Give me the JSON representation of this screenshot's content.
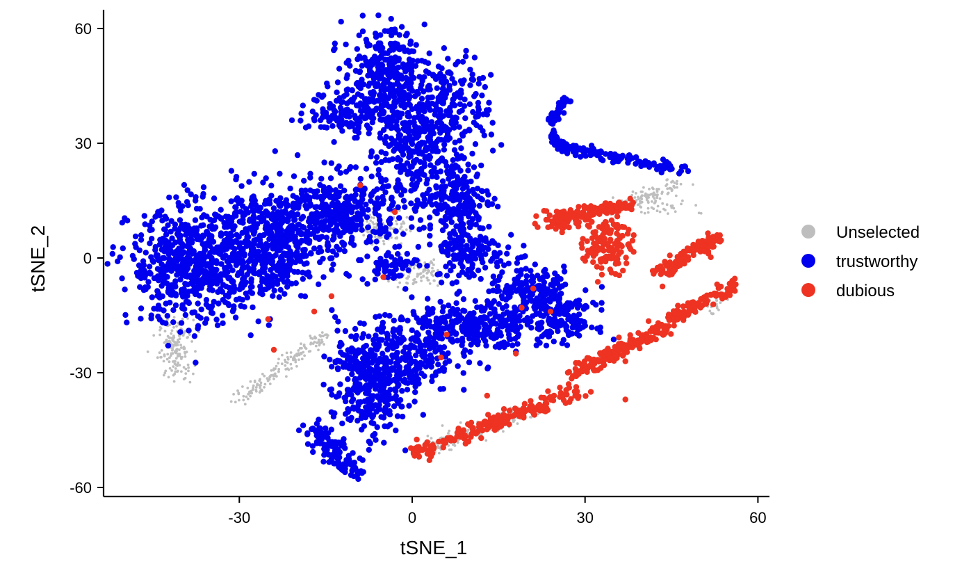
{
  "chart_data": {
    "type": "scatter",
    "title": "",
    "xlabel": "tSNE_1",
    "ylabel": "tSNE_2",
    "xlim": [
      -53,
      62
    ],
    "ylim": [
      -62,
      65
    ],
    "xticks": [
      -30,
      0,
      30,
      60
    ],
    "yticks": [
      -60,
      -30,
      0,
      30,
      60
    ],
    "grid": false,
    "legend_position": "right",
    "series": [
      {
        "name": "Unselected",
        "color": "#bebebe",
        "point_size": "small",
        "clusters": [
          {
            "cx": -41,
            "cy": -24,
            "sx": 1.5,
            "sy": 4,
            "n": 160
          },
          {
            "cx": -5,
            "cy": 8,
            "sx": 2,
            "sy": 2.2,
            "n": 90
          },
          {
            "cx": 1,
            "cy": -4,
            "sx": 2.5,
            "sy": 1.8,
            "n": 90
          },
          {
            "cx": 42,
            "cy": 14,
            "sx": 3,
            "sy": 2,
            "n": 50
          },
          {
            "cx": 52,
            "cy": -12,
            "sx": 1.2,
            "sy": 1,
            "n": 25
          }
        ],
        "lines": [
          {
            "from": [
              -30,
              -37
            ],
            "to": [
              -15,
              -20
            ],
            "spread": 0.8,
            "n": 150
          },
          {
            "from": [
              3,
              -50
            ],
            "to": [
              20,
              -40
            ],
            "spread": 1.3,
            "n": 170
          },
          {
            "from": [
              36,
              13
            ],
            "to": [
              47,
              20
            ],
            "spread": 0.8,
            "n": 80
          }
        ]
      },
      {
        "name": "trustworthy",
        "color": "#0000ee",
        "point_size": "large",
        "clusters": [
          {
            "cx": -38,
            "cy": -2,
            "sx": 5.5,
            "sy": 7.5,
            "n": 620
          },
          {
            "cx": -25,
            "cy": 4,
            "sx": 5,
            "sy": 7,
            "n": 520
          },
          {
            "cx": -12,
            "cy": 12,
            "sx": 5,
            "sy": 5,
            "n": 380
          },
          {
            "cx": -5,
            "cy": 48,
            "sx": 3.5,
            "sy": 6,
            "n": 300
          },
          {
            "cx": -10,
            "cy": 38,
            "sx": 4,
            "sy": 3,
            "n": 150
          },
          {
            "cx": 6,
            "cy": 40,
            "sx": 4,
            "sy": 6,
            "n": 230
          },
          {
            "cx": 0,
            "cy": 28,
            "sx": 3,
            "sy": 5,
            "n": 180
          },
          {
            "cx": 7,
            "cy": 16,
            "sx": 3.5,
            "sy": 6,
            "n": 220
          },
          {
            "cx": 10,
            "cy": 2,
            "sx": 3,
            "sy": 4,
            "n": 140
          },
          {
            "cx": -4,
            "cy": -2,
            "sx": 2.5,
            "sy": 2,
            "n": 60
          },
          {
            "cx": -8,
            "cy": -35,
            "sx": 3,
            "sy": 6,
            "n": 240
          },
          {
            "cx": -3,
            "cy": -26,
            "sx": 5,
            "sy": 5,
            "n": 300
          },
          {
            "cx": 10,
            "cy": -18,
            "sx": 5,
            "sy": 3.5,
            "n": 300
          },
          {
            "cx": 21,
            "cy": -10,
            "sx": 4,
            "sy": 4,
            "n": 220
          },
          {
            "cx": 27,
            "cy": -17,
            "sx": 2.5,
            "sy": 2.5,
            "n": 100
          }
        ],
        "lines": [
          {
            "from": [
              -17,
              -45
            ],
            "to": [
              -10,
              -57
            ],
            "spread": 1.3,
            "n": 120
          },
          {
            "from": [
              24,
              36
            ],
            "to": [
              27,
              42
            ],
            "spread": 0.5,
            "n": 40
          },
          {
            "from": [
              24,
              32
            ],
            "to": [
              26,
              29
            ],
            "spread": 0.6,
            "n": 30
          },
          {
            "from": [
              26,
              29
            ],
            "to": [
              47,
              23
            ],
            "spread": 0.7,
            "n": 140
          }
        ]
      },
      {
        "name": "dubious",
        "color": "#ee3322",
        "point_size": "large",
        "clusters": [
          {
            "cx": 34,
            "cy": 4,
            "sx": 2,
            "sy": 4,
            "n": 130
          },
          {
            "cx": 26,
            "cy": 10,
            "sx": 2,
            "sy": 1.5,
            "n": 60
          }
        ],
        "lines": [
          {
            "from": [
              26,
              11
            ],
            "to": [
              38,
              14
            ],
            "spread": 0.8,
            "n": 120
          },
          {
            "from": [
              43,
              -4
            ],
            "to": [
              53,
              5
            ],
            "spread": 0.9,
            "n": 110
          },
          {
            "from": [
              45,
              -16
            ],
            "to": [
              56,
              -7
            ],
            "spread": 0.8,
            "n": 100
          },
          {
            "from": [
              28,
              -30
            ],
            "to": [
              44,
              -18
            ],
            "spread": 0.9,
            "n": 170
          },
          {
            "from": [
              1,
              -51
            ],
            "to": [
              28,
              -35
            ],
            "spread": 1.0,
            "n": 200
          }
        ],
        "points": [
          [
            -25,
            -16
          ],
          [
            -17,
            -14
          ],
          [
            -14,
            -10
          ],
          [
            -24,
            -24
          ],
          [
            -9,
            19
          ],
          [
            -5,
            -5
          ],
          [
            -3,
            12
          ],
          [
            5,
            -26
          ],
          [
            6,
            -20
          ],
          [
            13,
            -36
          ],
          [
            19,
            -13
          ],
          [
            18,
            -25
          ],
          [
            24,
            -14
          ],
          [
            30,
            -28
          ],
          [
            37,
            -27
          ],
          [
            31,
            -35
          ],
          [
            37,
            -37
          ],
          [
            21,
            -8
          ]
        ]
      }
    ]
  }
}
